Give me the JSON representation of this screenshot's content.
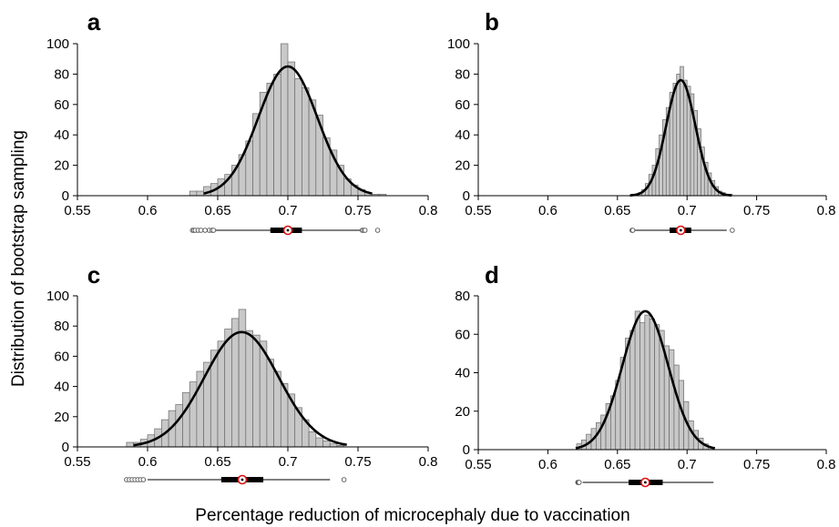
{
  "figure": {
    "ylabel": "Distribution of bootstrap sampling",
    "xlabel": "Percentage reduction of microcephaly due to vaccination"
  },
  "chart_data": [
    {
      "type": "bar",
      "panel": "a",
      "xlim": [
        0.55,
        0.8
      ],
      "ylim": [
        0,
        100
      ],
      "x_ticks": [
        "0.55",
        "0.6",
        "0.65",
        "0.7",
        "0.75",
        "0.8"
      ],
      "y_ticks": [
        "0",
        "20",
        "40",
        "60",
        "80",
        "100"
      ],
      "bin_width": 0.005,
      "bin_centers": [
        0.6325,
        0.6375,
        0.6425,
        0.6475,
        0.6525,
        0.6575,
        0.6625,
        0.6675,
        0.6725,
        0.6775,
        0.6825,
        0.6875,
        0.6925,
        0.6975,
        0.7025,
        0.7075,
        0.7125,
        0.7175,
        0.7225,
        0.7275,
        0.7325,
        0.7375,
        0.7425,
        0.7475,
        0.7525,
        0.7575,
        0.7625,
        0.7675
      ],
      "values": [
        3,
        3,
        6,
        8,
        11,
        14,
        20,
        27,
        36,
        54,
        68,
        74,
        80,
        100,
        88,
        77,
        71,
        63,
        53,
        38,
        30,
        20,
        11,
        7,
        4,
        2,
        1,
        1
      ],
      "fit_curve": {
        "mean": 0.7,
        "sd": 0.021,
        "peak": 85,
        "from": 0.64,
        "to": 0.76
      },
      "boxplot": {
        "whisker_low": 0.6475,
        "q1": 0.6875,
        "median": 0.7,
        "q3": 0.71,
        "whisker_high": 0.752,
        "outliers": [
          0.632,
          0.633,
          0.634,
          0.636,
          0.638,
          0.641,
          0.644,
          0.646,
          0.647,
          0.753,
          0.754,
          0.755,
          0.764
        ]
      }
    },
    {
      "type": "bar",
      "panel": "b",
      "xlim": [
        0.55,
        0.8
      ],
      "ylim": [
        0,
        100
      ],
      "x_ticks": [
        "0.55",
        "0.6",
        "0.65",
        "0.7",
        "0.75",
        "0.8"
      ],
      "y_ticks": [
        "0",
        "20",
        "40",
        "60",
        "80",
        "100"
      ],
      "bin_width": 0.0025,
      "bin_centers": [
        0.66125,
        0.66375,
        0.66625,
        0.66875,
        0.67125,
        0.67375,
        0.67625,
        0.67875,
        0.68125,
        0.68375,
        0.68625,
        0.68875,
        0.69125,
        0.69375,
        0.69625,
        0.69875,
        0.70125,
        0.70375,
        0.70625,
        0.70875,
        0.71125,
        0.71375,
        0.71625,
        0.71875,
        0.72125,
        0.72375,
        0.72625,
        0.72875,
        0.73125
      ],
      "values": [
        1,
        1,
        2,
        4,
        8,
        14,
        20,
        31,
        40,
        50,
        58,
        68,
        74,
        80,
        85,
        76,
        72,
        67,
        56,
        44,
        32,
        22,
        15,
        10,
        6,
        3,
        2,
        1,
        1
      ],
      "fit_curve": {
        "mean": 0.6955,
        "sd": 0.0105,
        "peak": 76,
        "from": 0.659,
        "to": 0.732
      },
      "boxplot": {
        "whisker_low": 0.6625,
        "q1": 0.6875,
        "median": 0.6955,
        "q3": 0.703,
        "whisker_high": 0.7285,
        "outliers": [
          0.6605,
          0.661,
          0.7325
        ]
      }
    },
    {
      "type": "bar",
      "panel": "c",
      "xlim": [
        0.55,
        0.8
      ],
      "ylim": [
        0,
        100
      ],
      "x_ticks": [
        "0.55",
        "0.6",
        "0.65",
        "0.7",
        "0.75",
        "0.8"
      ],
      "y_ticks": [
        "0",
        "20",
        "40",
        "60",
        "80",
        "100"
      ],
      "bin_width": 0.005,
      "bin_centers": [
        0.5875,
        0.5925,
        0.5975,
        0.6025,
        0.6075,
        0.6125,
        0.6175,
        0.6225,
        0.6275,
        0.6325,
        0.6375,
        0.6425,
        0.6475,
        0.6525,
        0.6575,
        0.6625,
        0.6675,
        0.6725,
        0.6775,
        0.6825,
        0.6875,
        0.6925,
        0.6975,
        0.7025,
        0.7075,
        0.7125,
        0.7175,
        0.7225,
        0.7275,
        0.7325,
        0.7375
      ],
      "values": [
        3,
        3,
        5,
        8,
        12,
        18,
        24,
        28,
        36,
        43,
        50,
        56,
        64,
        70,
        78,
        85,
        91,
        77,
        74,
        70,
        58,
        50,
        42,
        35,
        26,
        18,
        10,
        6,
        4,
        2,
        1
      ],
      "fit_curve": {
        "mean": 0.667,
        "sd": 0.0265,
        "peak": 76,
        "from": 0.59,
        "to": 0.742
      },
      "boxplot": {
        "whisker_low": 0.6,
        "q1": 0.6525,
        "median": 0.6675,
        "q3": 0.6825,
        "whisker_high": 0.73,
        "outliers": [
          0.585,
          0.587,
          0.589,
          0.591,
          0.593,
          0.595,
          0.597,
          0.74
        ]
      }
    },
    {
      "type": "bar",
      "panel": "d",
      "xlim": [
        0.55,
        0.8
      ],
      "ylim": [
        0,
        80
      ],
      "x_ticks": [
        "0.55",
        "0.6",
        "0.65",
        "0.7",
        "0.75",
        "0.8"
      ],
      "y_ticks": [
        "0",
        "20",
        "40",
        "60",
        "80"
      ],
      "bin_width": 0.0035,
      "bin_centers": [
        0.6224,
        0.6259,
        0.6294,
        0.6329,
        0.6364,
        0.6399,
        0.6434,
        0.6469,
        0.6504,
        0.6539,
        0.6574,
        0.6609,
        0.6644,
        0.6679,
        0.6714,
        0.6749,
        0.6784,
        0.6819,
        0.6854,
        0.6889,
        0.6924,
        0.6959,
        0.6994,
        0.7029,
        0.7064,
        0.7099,
        0.7134,
        0.7169
      ],
      "values": [
        3,
        5,
        8,
        11,
        14,
        18,
        24,
        28,
        36,
        48,
        58,
        62,
        72,
        66,
        70,
        68,
        65,
        62,
        54,
        52,
        44,
        36,
        25,
        15,
        10,
        6,
        3,
        1
      ],
      "fit_curve": {
        "mean": 0.67,
        "sd": 0.0165,
        "peak": 72,
        "from": 0.62,
        "to": 0.72
      },
      "boxplot": {
        "whisker_low": 0.625,
        "q1": 0.658,
        "median": 0.67,
        "q3": 0.6825,
        "whisker_high": 0.719,
        "outliers": [
          0.6215,
          0.622,
          0.6225
        ]
      }
    }
  ]
}
